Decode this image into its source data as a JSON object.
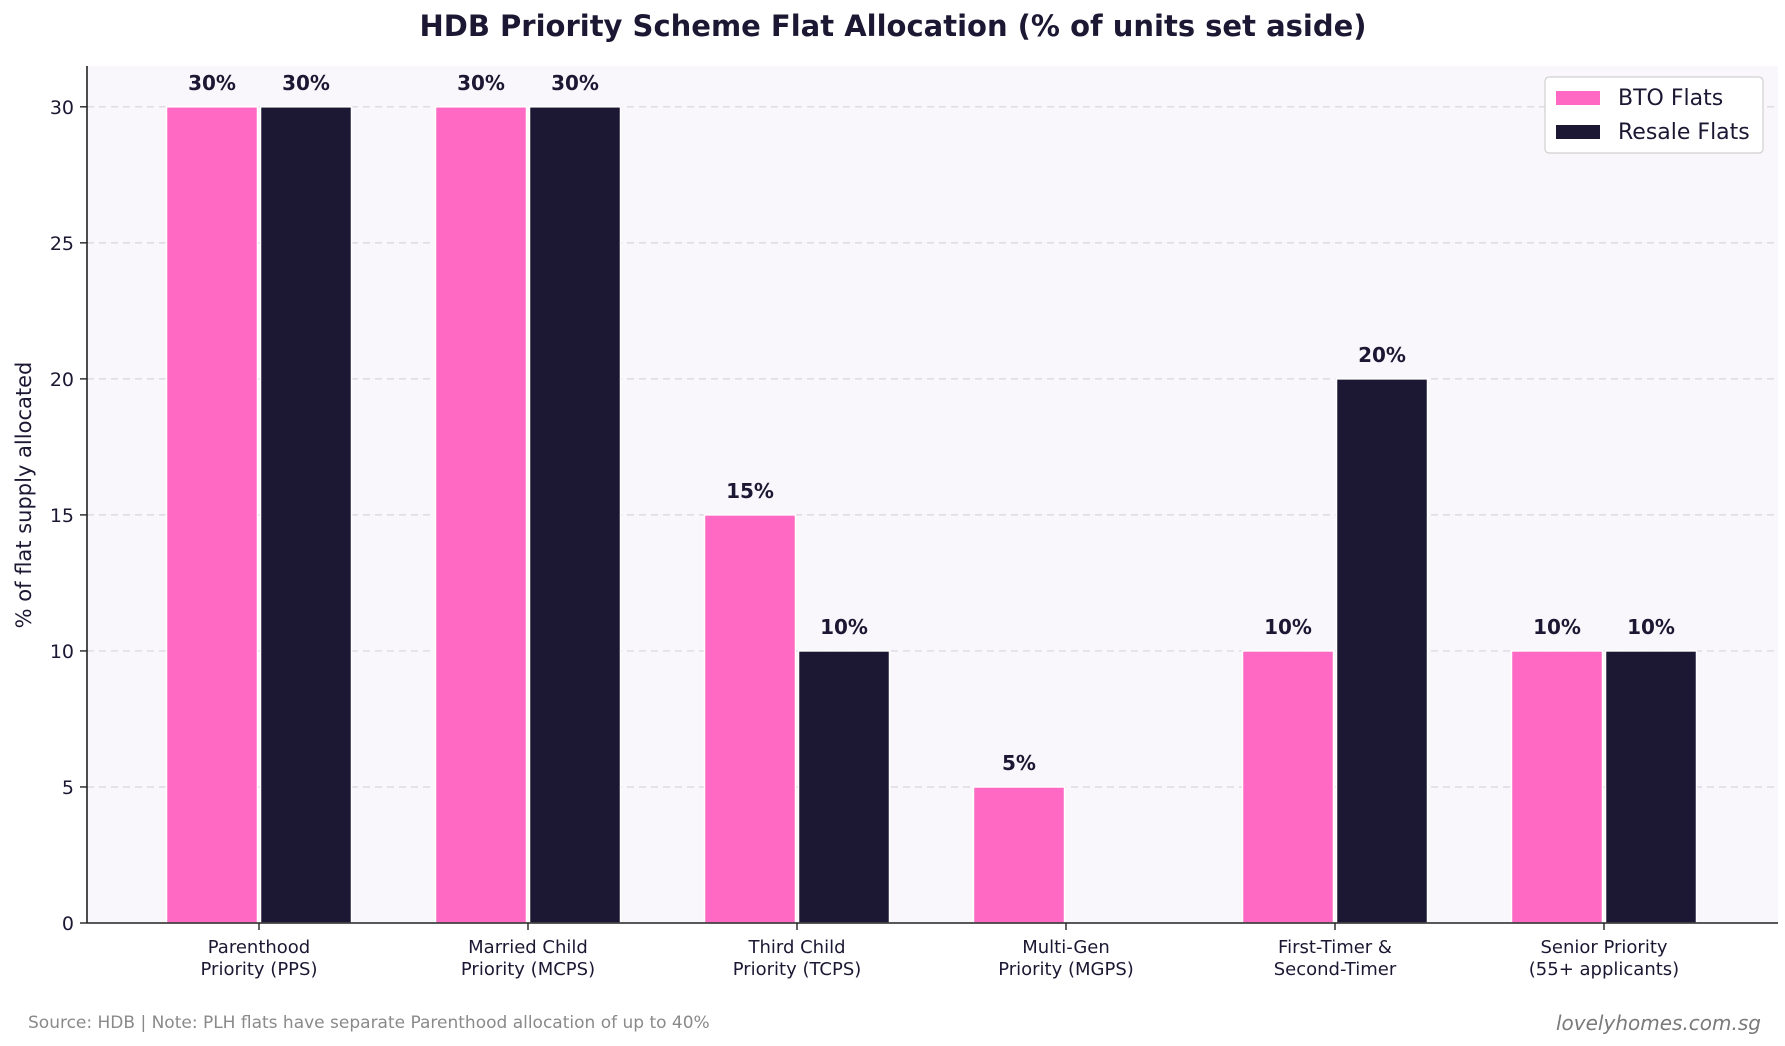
{
  "chart_data": {
    "type": "bar",
    "title": "HDB Priority Scheme Flat Allocation (% of units set aside)",
    "ylabel": "% of flat supply allocated",
    "xlabel": "",
    "ylim": [
      0,
      31.5
    ],
    "yticks": [
      0,
      5,
      10,
      15,
      20,
      25,
      30
    ],
    "grid": true,
    "legend_position": "top-right",
    "categories": [
      [
        "Parenthood",
        "Priority (PPS)"
      ],
      [
        "Married Child",
        "Priority (MCPS)"
      ],
      [
        "Third Child",
        "Priority (TCPS)"
      ],
      [
        "Multi-Gen",
        "Priority (MGPS)"
      ],
      [
        "First-Timer &",
        "Second-Timer"
      ],
      [
        "Senior Priority",
        "(55+ applicants)"
      ]
    ],
    "series": [
      {
        "name": "BTO Flats",
        "color": "#ff69c4",
        "values": [
          30,
          30,
          15,
          5,
          10,
          10
        ],
        "labels": [
          "30%",
          "30%",
          "15%",
          "5%",
          "10%",
          "10%"
        ]
      },
      {
        "name": "Resale Flats",
        "color": "#1c1833",
        "values": [
          30,
          30,
          10,
          0,
          20,
          10
        ],
        "labels": [
          "30%",
          "30%",
          "10%",
          "",
          "20%",
          "10%"
        ]
      }
    ]
  },
  "footer": {
    "source": "Source: HDB | Note: PLH flats have separate Parenthood allocation of up to 40%",
    "site": "lovelyhomes.com.sg"
  }
}
